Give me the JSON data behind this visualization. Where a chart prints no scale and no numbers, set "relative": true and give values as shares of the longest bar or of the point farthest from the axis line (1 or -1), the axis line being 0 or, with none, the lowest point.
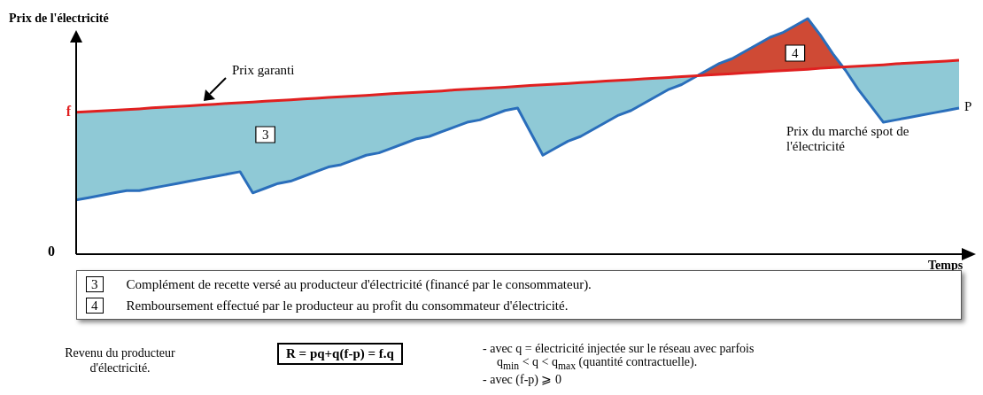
{
  "chart_data": {
    "type": "line",
    "relative": true,
    "ylabel": "Prix de l'électricité",
    "xlabel": "Temps",
    "categories": [
      null,
      null,
      null,
      null,
      null,
      null,
      null,
      null,
      null,
      null,
      null,
      null,
      null,
      null,
      null,
      null,
      null,
      null,
      null,
      null,
      null,
      null,
      null,
      null,
      null,
      null,
      null,
      null,
      null,
      null,
      null,
      null,
      null,
      null,
      null,
      null,
      null,
      null,
      null,
      null,
      null,
      null,
      null,
      null,
      null,
      null,
      null,
      null,
      null,
      null,
      null,
      null,
      null,
      null,
      null,
      null,
      null,
      null,
      null,
      null,
      null,
      null,
      null,
      null,
      null,
      null,
      null,
      null,
      null,
      null,
      null
    ],
    "series": [
      {
        "name": "Prix garanti",
        "color": "#e02020",
        "values": [
          0.602,
          0.605,
          0.608,
          0.611,
          0.614,
          0.617,
          0.621,
          0.624,
          0.627,
          0.63,
          0.633,
          0.636,
          0.64,
          0.643,
          0.646,
          0.649,
          0.652,
          0.655,
          0.659,
          0.662,
          0.665,
          0.668,
          0.671,
          0.674,
          0.678,
          0.681,
          0.684,
          0.687,
          0.69,
          0.693,
          0.697,
          0.7,
          0.703,
          0.706,
          0.709,
          0.712,
          0.716,
          0.719,
          0.722,
          0.725,
          0.728,
          0.731,
          0.735,
          0.738,
          0.741,
          0.744,
          0.747,
          0.75,
          0.754,
          0.757,
          0.76,
          0.763,
          0.766,
          0.77,
          0.773,
          0.776,
          0.779,
          0.782,
          0.785,
          0.789,
          0.792,
          0.795,
          0.798,
          0.801,
          0.804,
          0.808,
          0.811,
          0.814,
          0.817,
          0.82,
          0.823
        ]
      },
      {
        "name": "Prix du marché spot de l'électricité",
        "color": "#2a6ebb",
        "values": [
          0.23,
          0.24,
          0.25,
          0.26,
          0.27,
          0.27,
          0.28,
          0.29,
          0.3,
          0.31,
          0.32,
          0.33,
          0.34,
          0.35,
          0.26,
          0.28,
          0.3,
          0.31,
          0.33,
          0.35,
          0.37,
          0.38,
          0.4,
          0.42,
          0.43,
          0.45,
          0.47,
          0.49,
          0.5,
          0.52,
          0.54,
          0.56,
          0.57,
          0.59,
          0.61,
          0.62,
          0.52,
          0.42,
          0.45,
          0.48,
          0.5,
          0.53,
          0.56,
          0.59,
          0.61,
          0.64,
          0.67,
          0.7,
          0.72,
          0.75,
          0.78,
          0.81,
          0.83,
          0.86,
          0.89,
          0.92,
          0.94,
          0.97,
          1,
          0.93,
          0.85,
          0.78,
          0.7,
          0.63,
          0.56,
          0.57,
          0.58,
          0.59,
          0.6,
          0.61,
          0.62
        ]
      }
    ],
    "marker": "none",
    "legend": false,
    "annotations": [
      "3",
      "4",
      "P",
      "f",
      "0",
      "3",
      "Complément de recette versé au producteur d'électricité (financé par le consommateur).",
      "4",
      "Remboursement effectué par le producteur au profit du consommateur d'électricité.",
      "Revenu du producteur d'électricité.",
      "R = pq+q(f-p) = f.q",
      "- avec q = électricité injectée sur le réseau avec parfois",
      "q$_{min}$ < q < q$_{max}$ (quantité contractuelle).",
      "- avec (f-p) ⩾ 0"
    ]
  }
}
